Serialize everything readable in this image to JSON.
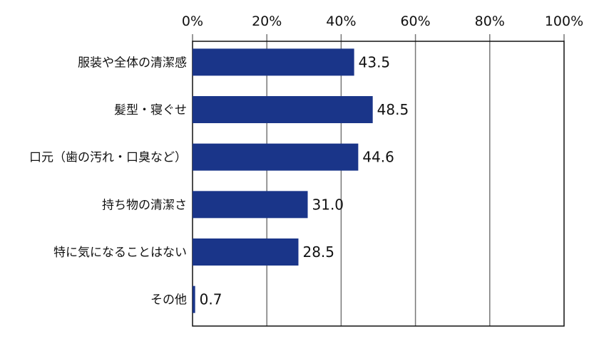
{
  "chart_data": {
    "type": "bar",
    "orientation": "horizontal",
    "categories": [
      "服装や全体の清潔感",
      "髪型・寝ぐせ",
      "口元（歯の汚れ・口臭など）",
      "持ち物の清潔さ",
      "特に気になることはない",
      "その他"
    ],
    "values": [
      43.5,
      48.5,
      44.6,
      31.0,
      28.5,
      0.7
    ],
    "value_labels": [
      "43.5",
      "48.5",
      "44.6",
      "31.0",
      "28.5",
      "0.7"
    ],
    "xlim": [
      0,
      100
    ],
    "x_ticks": [
      0,
      20,
      40,
      60,
      80,
      100
    ],
    "x_tick_labels": [
      "0%",
      "20%",
      "40%",
      "60%",
      "80%",
      "100%"
    ],
    "x_axis_position": "top",
    "grid": true,
    "title": "",
    "xlabel": "",
    "ylabel": "",
    "colors": {
      "bar": "#1a3589",
      "grid": "#777777",
      "frame": "#111111"
    }
  }
}
